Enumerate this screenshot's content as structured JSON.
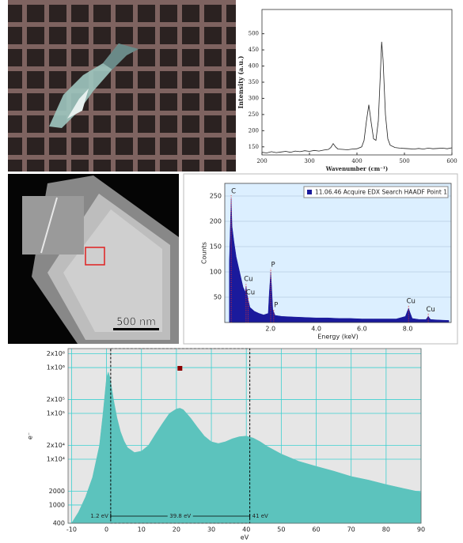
{
  "tem_image": {
    "scale_bar": "500 nm"
  },
  "chart_data": [
    {
      "type": "line",
      "xlabel": "Wavenumber (cm⁻¹)",
      "ylabel": "Intensity (a.u.)",
      "xlim": [
        200,
        600
      ],
      "ylim": [
        125,
        575
      ],
      "xticks": [
        200,
        300,
        400,
        500,
        600
      ],
      "yticks": [
        150,
        200,
        250,
        300,
        350,
        400,
        450,
        500
      ],
      "grid": false,
      "yscale": "linear",
      "x": [
        200,
        210,
        220,
        230,
        240,
        250,
        260,
        270,
        280,
        290,
        300,
        310,
        320,
        330,
        340,
        345,
        350,
        355,
        360,
        370,
        380,
        390,
        400,
        410,
        415,
        420,
        425,
        430,
        435,
        440,
        445,
        450,
        452,
        455,
        460,
        465,
        470,
        480,
        490,
        500,
        510,
        520,
        530,
        540,
        550,
        560,
        570,
        580,
        590,
        600
      ],
      "series": [
        {
          "color": "#222222",
          "values": [
            133,
            131,
            135,
            132,
            134,
            136,
            133,
            137,
            135,
            138,
            136,
            139,
            137,
            140,
            142,
            148,
            160,
            150,
            143,
            142,
            141,
            143,
            144,
            150,
            170,
            230,
            280,
            225,
            175,
            170,
            230,
            400,
            475,
            420,
            250,
            175,
            155,
            148,
            146,
            145,
            144,
            143,
            145,
            143,
            146,
            144,
            145,
            146,
            144,
            147
          ]
        }
      ]
    },
    {
      "type": "area",
      "xlabel": "Energy (keV)",
      "ylabel": "Counts",
      "xlim": [
        0,
        9.9
      ],
      "ylim": [
        0,
        275
      ],
      "xticks": [
        {
          "value": 2,
          "label": "2.0"
        },
        {
          "value": 4,
          "label": "4.0"
        },
        {
          "value": 6,
          "label": "6.0"
        },
        {
          "value": 8,
          "label": "8.0"
        }
      ],
      "yticks": [
        50,
        100,
        150,
        200,
        250
      ],
      "grid": "y",
      "yscale": "linear",
      "legend": "upper right",
      "x": [
        0.2,
        0.25,
        0.28,
        0.32,
        0.4,
        0.5,
        0.6,
        0.7,
        0.8,
        0.9,
        0.93,
        0.98,
        1.02,
        1.1,
        1.3,
        1.5,
        1.7,
        1.9,
        1.95,
        2.01,
        2.05,
        2.1,
        2.2,
        2.5,
        3,
        3.5,
        4,
        4.5,
        5,
        5.5,
        6,
        6.5,
        7,
        7.5,
        7.9,
        8.0,
        8.04,
        8.1,
        8.2,
        8.5,
        8.8,
        8.9,
        9.0,
        9.3,
        9.8
      ],
      "series": [
        {
          "name": "11.06.46 Acquire EDX Search HAADF Point 1",
          "color": "#1a1a9c",
          "values": [
            120,
            200,
            245,
            190,
            160,
            130,
            110,
            90,
            70,
            60,
            72,
            55,
            45,
            30,
            22,
            18,
            15,
            18,
            60,
            100,
            70,
            25,
            14,
            12,
            11,
            10,
            9,
            9,
            8,
            8,
            7,
            7,
            7,
            7,
            12,
            24,
            28,
            20,
            8,
            6,
            6,
            12,
            6,
            5,
            4
          ]
        }
      ],
      "annotations": [
        {
          "text": "C",
          "x": 0.28
        },
        {
          "text": "Cu",
          "x": 0.93
        },
        {
          "text": "Cu",
          "x": 1.02
        },
        {
          "text": "P",
          "x": 2.01
        },
        {
          "text": "P",
          "x": 2.14
        },
        {
          "text": "Cu",
          "x": 8.04
        },
        {
          "text": "Cu",
          "x": 8.9
        }
      ]
    },
    {
      "type": "area",
      "xlabel": "eV",
      "ylabel": "e⁻",
      "xlim": [
        -11,
        90
      ],
      "ylim": [
        400,
        2600000
      ],
      "xticks": [
        -10,
        0,
        10,
        20,
        30,
        40,
        50,
        60,
        70,
        80,
        90
      ],
      "yticks": [
        400,
        1000,
        2000,
        {
          "value": 10000,
          "label": "1x10⁴"
        },
        {
          "value": 20000,
          "label": "2x10⁴"
        },
        {
          "value": 100000,
          "label": "1x10⁵"
        },
        {
          "value": 200000,
          "label": "2x10⁵"
        },
        {
          "value": 1000000,
          "label": "1x10⁶"
        },
        {
          "value": 2000000,
          "label": "2x10⁶"
        }
      ],
      "grid": "both",
      "yscale": "log",
      "x": [
        -10,
        -8,
        -6,
        -4,
        -2,
        -1,
        0,
        0.5,
        1,
        2,
        3,
        4,
        5,
        6,
        8,
        10,
        12,
        14,
        16,
        18,
        20,
        21,
        22,
        24,
        26,
        28,
        30,
        32,
        34,
        36,
        38,
        40,
        42,
        44,
        46,
        50,
        55,
        60,
        65,
        70,
        75,
        80,
        85,
        90
      ],
      "series": [
        {
          "color": "#5cc3bd",
          "values": [
            400,
            700,
            1500,
            4000,
            20000,
            100000,
            600000,
            800000,
            600000,
            200000,
            80000,
            40000,
            25000,
            18000,
            14000,
            15000,
            20000,
            35000,
            60000,
            100000,
            125000,
            130000,
            120000,
            80000,
            50000,
            32000,
            24000,
            22000,
            24000,
            28000,
            31000,
            32000,
            29000,
            24000,
            19000,
            13000,
            9000,
            7000,
            5500,
            4200,
            3500,
            2800,
            2300,
            1900
          ]
        }
      ],
      "markers": [
        {
          "x": 1.2,
          "label": "1.2 eV"
        },
        {
          "x": 41,
          "label": "41 eV"
        }
      ],
      "span_label": "39.8 eV"
    }
  ]
}
